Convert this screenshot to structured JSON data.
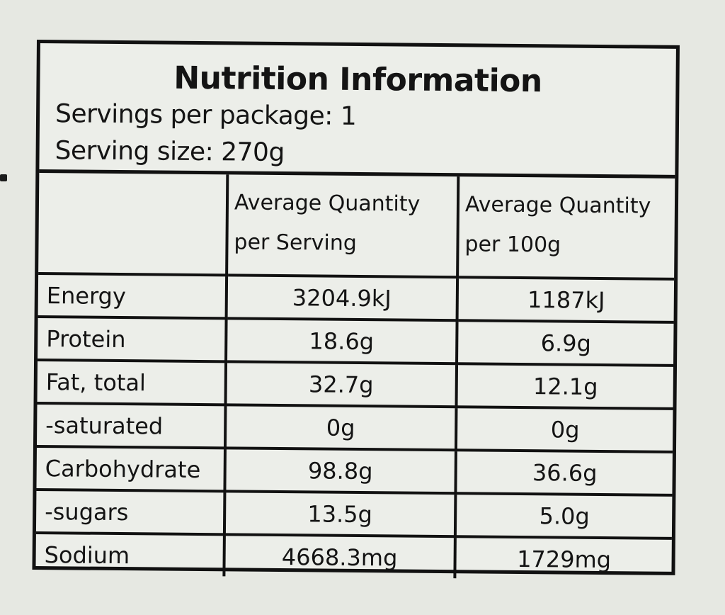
{
  "title": "Nutrition Information",
  "servings_per_package": "Servings per package: 1",
  "serving_size": "Serving size: 270g",
  "columns": {
    "blank": "",
    "per_serving_line1": "Average Quantity",
    "per_serving_line2": "per Serving",
    "per_100g_line1": "Average Quantity",
    "per_100g_line2": "per 100g"
  },
  "rows": [
    {
      "nutrient": "Energy",
      "per_serving": "3204.9kJ",
      "per_100g": "1187kJ"
    },
    {
      "nutrient": "Protein",
      "per_serving": "18.6g",
      "per_100g": "6.9g"
    },
    {
      "nutrient": "Fat, total",
      "per_serving": "32.7g",
      "per_100g": "12.1g"
    },
    {
      "nutrient": "-saturated",
      "per_serving": "0g",
      "per_100g": "0g"
    },
    {
      "nutrient": "Carbohydrate",
      "per_serving": "98.8g",
      "per_100g": "36.6g"
    },
    {
      "nutrient": "-sugars",
      "per_serving": "13.5g",
      "per_100g": "5.0g"
    },
    {
      "nutrient": "Sodium",
      "per_serving": "4668.3mg",
      "per_100g": "1729mg"
    }
  ]
}
